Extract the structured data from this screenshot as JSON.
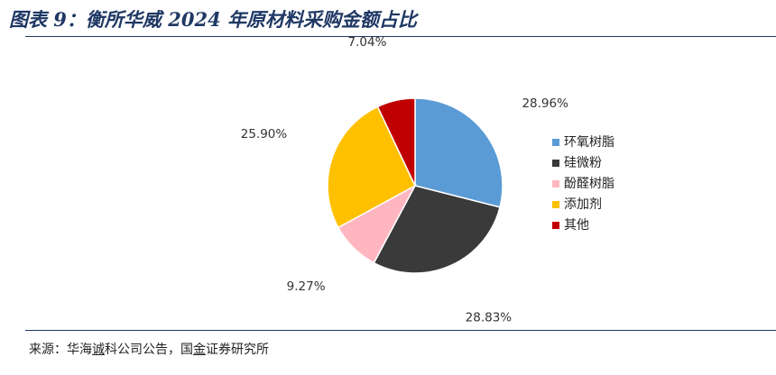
{
  "title": "图表 9：衡所华威 2024 年原材料采购金额占比",
  "source": {
    "prefix": "来源：华海",
    "underlined_1": "诚",
    "middle": "科公司公告，国",
    "underlined_2": "金",
    "suffix": "证券研究所"
  },
  "chart_data": {
    "type": "pie",
    "title": "",
    "categories": [
      "环氧树脂",
      "硅微粉",
      "酚醛树脂",
      "添加剂",
      "其他"
    ],
    "values": [
      28.96,
      28.83,
      9.27,
      25.9,
      7.04
    ],
    "labels": [
      "28.96%",
      "28.83%",
      "9.27%",
      "25.90%",
      "7.04%"
    ],
    "colors": [
      "#5b9bd5",
      "#3a3a3a",
      "#ffb6c1",
      "#ffc000",
      "#c00000"
    ],
    "start": "12 o'clock, clockwise",
    "legend": "right"
  }
}
